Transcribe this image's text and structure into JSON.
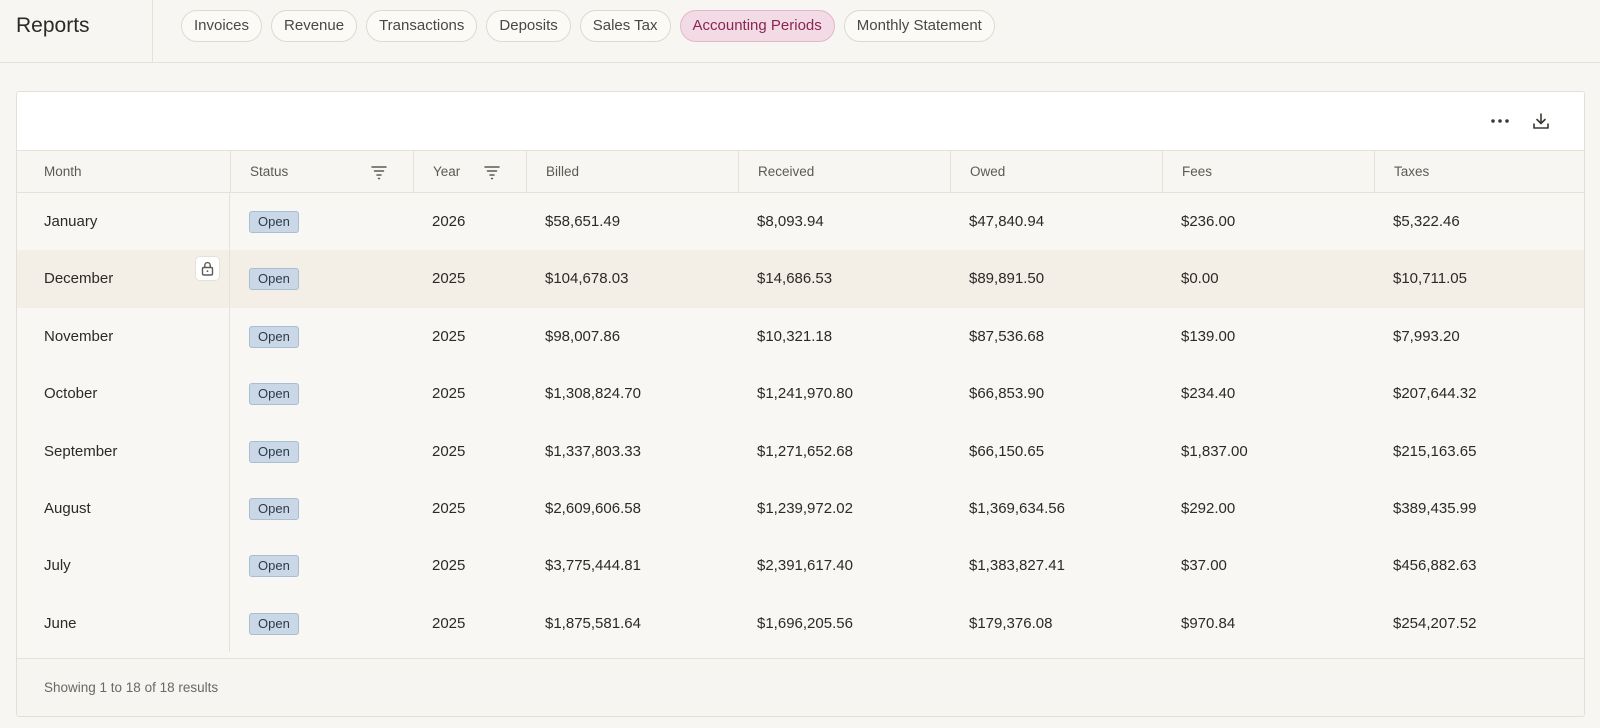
{
  "app": {
    "title": "Reports"
  },
  "tabs": [
    {
      "label": "Invoices",
      "active": false
    },
    {
      "label": "Revenue",
      "active": false
    },
    {
      "label": "Transactions",
      "active": false
    },
    {
      "label": "Deposits",
      "active": false
    },
    {
      "label": "Sales Tax",
      "active": false
    },
    {
      "label": "Accounting Periods",
      "active": true
    },
    {
      "label": "Monthly Statement",
      "active": false
    }
  ],
  "toolbar": {
    "more_icon": "more-horizontal-icon",
    "download_icon": "download-icon"
  },
  "table": {
    "columns": [
      "Month",
      "Status",
      "Year",
      "Billed",
      "Received",
      "Owed",
      "Fees",
      "Taxes"
    ],
    "filterable_columns": [
      "Status",
      "Year"
    ],
    "highlighted_row": 1,
    "rows": [
      {
        "month": "January",
        "status": "Open",
        "year": "2026",
        "billed": "$58,651.49",
        "received": "$8,093.94",
        "owed": "$47,840.94",
        "fees": "$236.00",
        "taxes": "$5,322.46"
      },
      {
        "month": "December",
        "status": "Open",
        "year": "2025",
        "billed": "$104,678.03",
        "received": "$14,686.53",
        "owed": "$89,891.50",
        "fees": "$0.00",
        "taxes": "$10,711.05"
      },
      {
        "month": "November",
        "status": "Open",
        "year": "2025",
        "billed": "$98,007.86",
        "received": "$10,321.18",
        "owed": "$87,536.68",
        "fees": "$139.00",
        "taxes": "$7,993.20"
      },
      {
        "month": "October",
        "status": "Open",
        "year": "2025",
        "billed": "$1,308,824.70",
        "received": "$1,241,970.80",
        "owed": "$66,853.90",
        "fees": "$234.40",
        "taxes": "$207,644.32"
      },
      {
        "month": "September",
        "status": "Open",
        "year": "2025",
        "billed": "$1,337,803.33",
        "received": "$1,271,652.68",
        "owed": "$66,150.65",
        "fees": "$1,837.00",
        "taxes": "$215,163.65"
      },
      {
        "month": "August",
        "status": "Open",
        "year": "2025",
        "billed": "$2,609,606.58",
        "received": "$1,239,972.02",
        "owed": "$1,369,634.56",
        "fees": "$292.00",
        "taxes": "$389,435.99"
      },
      {
        "month": "July",
        "status": "Open",
        "year": "2025",
        "billed": "$3,775,444.81",
        "received": "$2,391,617.40",
        "owed": "$1,383,827.41",
        "fees": "$37.00",
        "taxes": "$456,882.63"
      },
      {
        "month": "June",
        "status": "Open",
        "year": "2025",
        "billed": "$1,875,581.64",
        "received": "$1,696,205.56",
        "owed": "$179,376.08",
        "fees": "$970.84",
        "taxes": "$254,207.52"
      }
    ]
  },
  "footer": {
    "summary": "Showing 1 to 18 of 18 results"
  },
  "colors": {
    "accent": "#8a2553",
    "accent_bg": "#f3dbe5",
    "badge_bg": "#c9d7e6"
  }
}
